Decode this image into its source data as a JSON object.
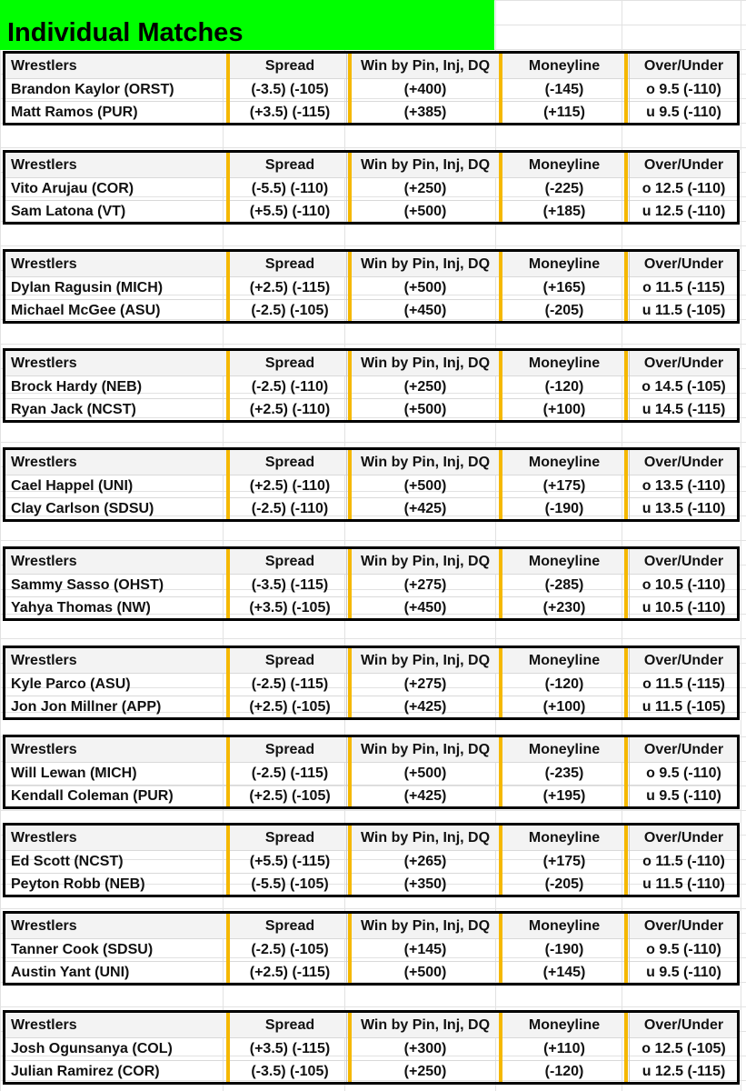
{
  "title": "Individual Matches",
  "headers": {
    "wrestlers": "Wrestlers",
    "spread": "Spread",
    "pin": "Win by Pin, Inj, DQ",
    "moneyline": "Moneyline",
    "overunder": "Over/Under"
  },
  "matches": [
    {
      "rows": [
        {
          "name": "Brandon Kaylor (ORST)",
          "spread": "(-3.5)  (-105)",
          "pin": "(+400)",
          "ml": "(-145)",
          "ou": "o  9.5  (-110)"
        },
        {
          "name": "Matt Ramos (PUR)",
          "spread": "(+3.5)  (-115)",
          "pin": "(+385)",
          "ml": "(+115)",
          "ou": "u  9.5  (-110)"
        }
      ]
    },
    {
      "rows": [
        {
          "name": "Vito Arujau (COR)",
          "spread": "(-5.5)  (-110)",
          "pin": "(+250)",
          "ml": "(-225)",
          "ou": "o  12.5  (-110)"
        },
        {
          "name": "Sam Latona (VT)",
          "spread": "(+5.5)  (-110)",
          "pin": "(+500)",
          "ml": "(+185)",
          "ou": "u  12.5  (-110)"
        }
      ]
    },
    {
      "rows": [
        {
          "name": "Dylan Ragusin (MICH)",
          "spread": "(+2.5)  (-115)",
          "pin": "(+500)",
          "ml": "(+165)",
          "ou": "o  11.5  (-115)"
        },
        {
          "name": "Michael McGee (ASU)",
          "spread": "(-2.5)  (-105)",
          "pin": "(+450)",
          "ml": "(-205)",
          "ou": "u  11.5  (-105)"
        }
      ]
    },
    {
      "rows": [
        {
          "name": "Brock Hardy (NEB)",
          "spread": "(-2.5)  (-110)",
          "pin": "(+250)",
          "ml": "(-120)",
          "ou": "o  14.5  (-105)"
        },
        {
          "name": "Ryan Jack (NCST)",
          "spread": "(+2.5)  (-110)",
          "pin": "(+500)",
          "ml": "(+100)",
          "ou": "u  14.5  (-115)"
        }
      ]
    },
    {
      "rows": [
        {
          "name": "Cael Happel (UNI)",
          "spread": "(+2.5)  (-110)",
          "pin": "(+500)",
          "ml": "(+175)",
          "ou": "o  13.5  (-110)"
        },
        {
          "name": "Clay Carlson (SDSU)",
          "spread": "(-2.5)  (-110)",
          "pin": "(+425)",
          "ml": "(-190)",
          "ou": "u  13.5  (-110)"
        }
      ]
    },
    {
      "rows": [
        {
          "name": "Sammy Sasso (OHST)",
          "spread": "(-3.5)  (-115)",
          "pin": "(+275)",
          "ml": "(-285)",
          "ou": "o  10.5  (-110)"
        },
        {
          "name": "Yahya Thomas (NW)",
          "spread": "(+3.5)  (-105)",
          "pin": "(+450)",
          "ml": "(+230)",
          "ou": "u  10.5  (-110)"
        }
      ]
    },
    {
      "rows": [
        {
          "name": "Kyle Parco (ASU)",
          "spread": "(-2.5)  (-115)",
          "pin": "(+275)",
          "ml": "(-120)",
          "ou": "o  11.5  (-115)"
        },
        {
          "name": "Jon Jon Millner (APP)",
          "spread": "(+2.5)  (-105)",
          "pin": "(+425)",
          "ml": "(+100)",
          "ou": "u  11.5  (-105)"
        }
      ]
    },
    {
      "rows": [
        {
          "name": "Will Lewan (MICH)",
          "spread": "(-2.5)  (-115)",
          "pin": "(+500)",
          "ml": "(-235)",
          "ou": "o  9.5  (-110)"
        },
        {
          "name": "Kendall Coleman (PUR)",
          "spread": "(+2.5)  (-105)",
          "pin": "(+425)",
          "ml": "(+195)",
          "ou": "u  9.5  (-110)"
        }
      ]
    },
    {
      "rows": [
        {
          "name": "Ed Scott (NCST)",
          "spread": "(+5.5)  (-115)",
          "pin": "(+265)",
          "ml": "(+175)",
          "ou": "o  11.5  (-110)"
        },
        {
          "name": "Peyton Robb (NEB)",
          "spread": "(-5.5)  (-105)",
          "pin": "(+350)",
          "ml": "(-205)",
          "ou": "u  11.5  (-110)"
        }
      ]
    },
    {
      "rows": [
        {
          "name": "Tanner Cook (SDSU)",
          "spread": "(-2.5)  (-105)",
          "pin": "(+145)",
          "ml": "(-190)",
          "ou": "o  9.5  (-110)"
        },
        {
          "name": "Austin Yant (UNI)",
          "spread": "(+2.5)  (-115)",
          "pin": "(+500)",
          "ml": "(+145)",
          "ou": "u  9.5  (-110)"
        }
      ]
    },
    {
      "rows": [
        {
          "name": "Josh Ogunsanya (COL)",
          "spread": "(+3.5)  (-115)",
          "pin": "(+300)",
          "ml": "(+110)",
          "ou": "o  12.5  (-105)"
        },
        {
          "name": "Julian Ramirez (COR)",
          "spread": "(-3.5)  (-105)",
          "pin": "(+250)",
          "ml": "(-120)",
          "ou": "u  12.5  (-115)"
        }
      ]
    }
  ],
  "colors": {
    "title_bg": "#00ff00",
    "separator": "#f5b800"
  }
}
